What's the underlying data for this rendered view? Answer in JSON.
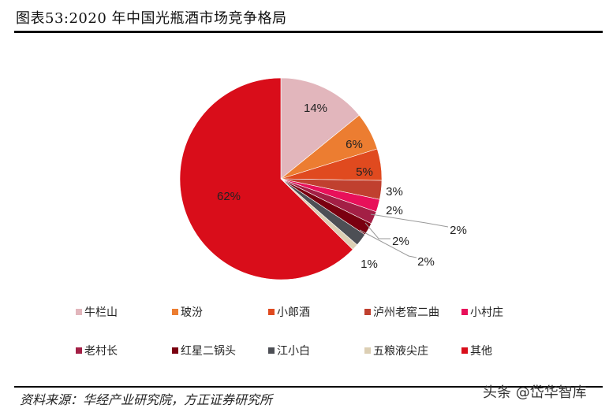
{
  "header": {
    "title": "图表53:2020 年中国光瓶酒市场竞争格局"
  },
  "footer": {
    "source": "资料来源：华经产业研究院，方正证券研究所",
    "watermark": "头条 @岱华智库"
  },
  "chart_data": {
    "type": "pie",
    "title": "图表53:2020 年中国光瓶酒市场竞争格局",
    "start_angle": "12 o'clock, clockwise",
    "categories": [
      "牛栏山",
      "玻汾",
      "小郎酒",
      "泸州老窖二曲",
      "小村庄",
      "老村长",
      "红星二锅头",
      "江小白",
      "五粮液尖庄",
      "其他"
    ],
    "values": [
      14,
      6,
      5,
      3,
      2,
      2,
      2,
      2,
      1,
      62
    ],
    "labels": [
      "14%",
      "6%",
      "5%",
      "3%",
      "2%",
      "2%",
      "2%",
      "2%",
      "1%",
      "62%"
    ],
    "colors": [
      "#E2B6BC",
      "#EC7D31",
      "#E04A1F",
      "#C0402F",
      "#E8105A",
      "#A31F45",
      "#7A0010",
      "#4D4F55",
      "#DCCFB4",
      "#D90D1A"
    ],
    "legend_position": "bottom"
  },
  "legend": [
    {
      "label": "牛栏山",
      "color": "#E2B6BC"
    },
    {
      "label": "玻汾",
      "color": "#EC7D31"
    },
    {
      "label": "小郎酒",
      "color": "#E04A1F"
    },
    {
      "label": "泸州老窖二曲",
      "color": "#C0402F"
    },
    {
      "label": "小村庄",
      "color": "#E8105A"
    },
    {
      "label": "老村长",
      "color": "#A31F45"
    },
    {
      "label": "红星二锅头",
      "color": "#7A0010"
    },
    {
      "label": "江小白",
      "color": "#4D4F55"
    },
    {
      "label": "五粮液尖庄",
      "color": "#DCCFB4"
    },
    {
      "label": "其他",
      "color": "#D90D1A"
    }
  ]
}
